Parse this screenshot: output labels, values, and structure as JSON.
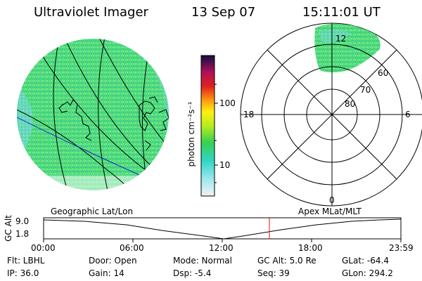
{
  "header": {
    "instrument": "Ultraviolet Imager",
    "date": "13 Sep 07",
    "time": "15:11:01 UT"
  },
  "colorbar": {
    "unit": "photon cm⁻²s⁻¹",
    "ticks": [
      "100",
      "10"
    ]
  },
  "polar_plot": {
    "mlt_labels": {
      "top": "12",
      "left": "18",
      "right": "6",
      "bottom": "0"
    },
    "lat_labels": [
      "60",
      "70",
      "80"
    ]
  },
  "panel_labels": {
    "left": "Geographic Lat/Lon",
    "right": "Apex MLat/MLT"
  },
  "altitude_plot": {
    "ylabel": "GC Alt",
    "yticks": [
      "9.0",
      "1.8"
    ],
    "xticks": [
      "00:00",
      "06:00",
      "12:00",
      "18:00",
      "23:59"
    ]
  },
  "status": {
    "filter": "Flt: LBHL",
    "door": "Door: Open",
    "mode": "Mode: Normal",
    "gc_alt": "GC Alt: 5.0 Re",
    "glat": "GLat: -64.4",
    "ip": "IP: 36.0",
    "gain": "Gain: 14",
    "dsp": "Dsp:    -5.4",
    "seq": "Seq: 39",
    "glon": "GLon: 294.2"
  },
  "colors": {
    "aurora_green": "#4fdc73",
    "aurora_cyan": "#6ed6d2",
    "coast_line": "#000000",
    "terminator_line": "#1a1ad8",
    "time_marker": "#e01010"
  }
}
